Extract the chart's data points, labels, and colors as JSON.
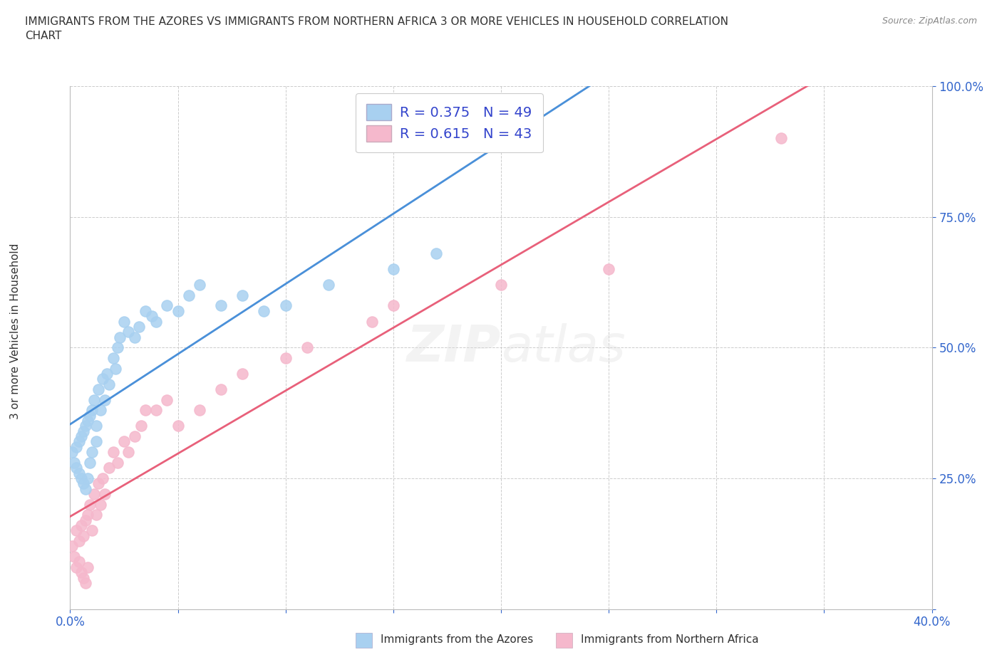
{
  "title": "IMMIGRANTS FROM THE AZORES VS IMMIGRANTS FROM NORTHERN AFRICA 3 OR MORE VEHICLES IN HOUSEHOLD CORRELATION\nCHART",
  "source": "Source: ZipAtlas.com",
  "ylabel": "3 or more Vehicles in Household",
  "xlim": [
    0.0,
    0.4
  ],
  "ylim": [
    0.0,
    1.0
  ],
  "azores_color": "#A8D0F0",
  "africa_color": "#F5B8CC",
  "trend_azores_color": "#4A90D9",
  "trend_africa_color": "#E8607A",
  "trend_azores_dashed_color": "#A0C0E0",
  "legend_color": "#3344CC",
  "R_azores": 0.375,
  "N_azores": 49,
  "R_africa": 0.615,
  "N_africa": 43,
  "watermark_text": "ZIPatlas",
  "background_color": "#FFFFFF",
  "grid_color": "#CCCCCC",
  "azores_x": [
    0.001,
    0.002,
    0.003,
    0.003,
    0.004,
    0.004,
    0.005,
    0.005,
    0.006,
    0.006,
    0.007,
    0.007,
    0.008,
    0.008,
    0.009,
    0.009,
    0.01,
    0.01,
    0.011,
    0.012,
    0.012,
    0.013,
    0.014,
    0.015,
    0.016,
    0.017,
    0.018,
    0.02,
    0.021,
    0.022,
    0.023,
    0.025,
    0.027,
    0.03,
    0.032,
    0.035,
    0.038,
    0.04,
    0.045,
    0.05,
    0.055,
    0.06,
    0.07,
    0.08,
    0.09,
    0.1,
    0.12,
    0.15,
    0.17
  ],
  "azores_y": [
    0.3,
    0.28,
    0.31,
    0.27,
    0.32,
    0.26,
    0.33,
    0.25,
    0.34,
    0.24,
    0.35,
    0.23,
    0.36,
    0.25,
    0.37,
    0.28,
    0.38,
    0.3,
    0.4,
    0.32,
    0.35,
    0.42,
    0.38,
    0.44,
    0.4,
    0.45,
    0.43,
    0.48,
    0.46,
    0.5,
    0.52,
    0.55,
    0.53,
    0.52,
    0.54,
    0.57,
    0.56,
    0.55,
    0.58,
    0.57,
    0.6,
    0.62,
    0.58,
    0.6,
    0.57,
    0.58,
    0.62,
    0.65,
    0.68
  ],
  "africa_x": [
    0.001,
    0.002,
    0.003,
    0.003,
    0.004,
    0.004,
    0.005,
    0.005,
    0.006,
    0.006,
    0.007,
    0.007,
    0.008,
    0.008,
    0.009,
    0.01,
    0.011,
    0.012,
    0.013,
    0.014,
    0.015,
    0.016,
    0.018,
    0.02,
    0.022,
    0.025,
    0.027,
    0.03,
    0.033,
    0.035,
    0.04,
    0.045,
    0.05,
    0.06,
    0.07,
    0.08,
    0.1,
    0.11,
    0.14,
    0.15,
    0.2,
    0.25,
    0.33
  ],
  "africa_y": [
    0.12,
    0.1,
    0.15,
    0.08,
    0.13,
    0.09,
    0.16,
    0.07,
    0.14,
    0.06,
    0.17,
    0.05,
    0.18,
    0.08,
    0.2,
    0.15,
    0.22,
    0.18,
    0.24,
    0.2,
    0.25,
    0.22,
    0.27,
    0.3,
    0.28,
    0.32,
    0.3,
    0.33,
    0.35,
    0.38,
    0.38,
    0.4,
    0.35,
    0.38,
    0.42,
    0.45,
    0.48,
    0.5,
    0.55,
    0.58,
    0.62,
    0.65,
    0.9
  ],
  "legend1_label": "R = 0.375   N = 49",
  "legend2_label": "R = 0.615   N = 43",
  "bottom_label1": "Immigrants from the Azores",
  "bottom_label2": "Immigrants from Northern Africa"
}
